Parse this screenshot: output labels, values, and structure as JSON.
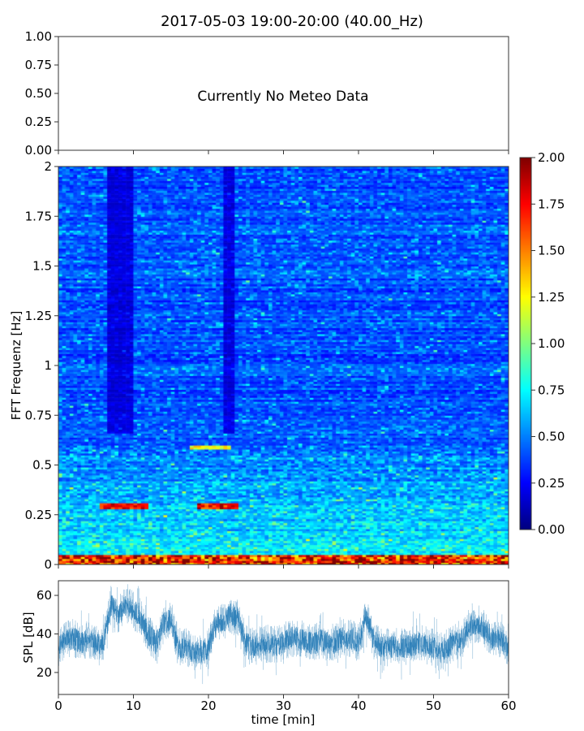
{
  "title": "2017-05-03 19:00-20:00 (40.00_Hz)",
  "chart_data": [
    {
      "type": "line",
      "panel": "meteo",
      "ylim": [
        0,
        1
      ],
      "yticks": [
        "0.00",
        "0.25",
        "0.50",
        "0.75",
        "1.00"
      ],
      "annotation": "Currently No Meteo Data",
      "xlim": [
        0,
        60
      ]
    },
    {
      "type": "heatmap",
      "panel": "spectrogram",
      "ylabel": "FFT Frequenz [Hz]",
      "ylim": [
        0,
        2
      ],
      "yticks": [
        "0",
        "0.25",
        "0.5",
        "0.75",
        "1",
        "1.25",
        "1.5",
        "1.75",
        "2"
      ],
      "xlim": [
        0,
        60
      ],
      "colormap": "jet",
      "clim": [
        0,
        2
      ],
      "colorbar_ticks": [
        "0.00",
        "0.25",
        "0.50",
        "0.75",
        "1.00",
        "1.25",
        "1.50",
        "1.75",
        "2.00"
      ],
      "features": {
        "dark_bands_min": [
          8,
          22.5
        ],
        "hot_low_freq_hz": [
          0,
          0.05
        ],
        "hot_streaks": [
          {
            "t": [
              5,
              12
            ],
            "f": 0.29
          },
          {
            "t": [
              18,
              24
            ],
            "f": 0.3
          },
          {
            "t": [
              17,
              23
            ],
            "f": 0.59
          }
        ]
      }
    },
    {
      "type": "line",
      "panel": "spl",
      "xlabel": "time [min]",
      "ylabel": "SPL [dB]",
      "xlim": [
        0,
        60
      ],
      "ylim": [
        8.6,
        67.6
      ],
      "xticks": [
        "0",
        "10",
        "20",
        "30",
        "40",
        "50",
        "60"
      ],
      "yticks": [
        "20",
        "40",
        "60"
      ],
      "x": [
        0,
        1,
        2,
        3,
        4,
        5,
        6,
        7,
        8,
        9,
        10,
        11,
        12,
        13,
        14,
        15,
        16,
        17,
        18,
        19,
        20,
        21,
        22,
        23,
        24,
        25,
        26,
        27,
        28,
        29,
        30,
        31,
        32,
        33,
        34,
        35,
        36,
        37,
        38,
        39,
        40,
        41,
        42,
        43,
        44,
        45,
        46,
        47,
        48,
        49,
        50,
        51,
        52,
        53,
        54,
        55,
        56,
        57,
        58,
        59,
        60
      ],
      "values": [
        33,
        37,
        38,
        35,
        37,
        35,
        34,
        55,
        50,
        55,
        52,
        48,
        40,
        35,
        45,
        48,
        32,
        33,
        30,
        31,
        33,
        45,
        46,
        50,
        48,
        35,
        33,
        34,
        35,
        34,
        36,
        38,
        38,
        36,
        35,
        37,
        35,
        36,
        38,
        38,
        36,
        50,
        37,
        33,
        33,
        34,
        33,
        34,
        35,
        34,
        33,
        30,
        34,
        36,
        38,
        44,
        45,
        42,
        36,
        38,
        33
      ],
      "color": "#1f77b4"
    }
  ]
}
